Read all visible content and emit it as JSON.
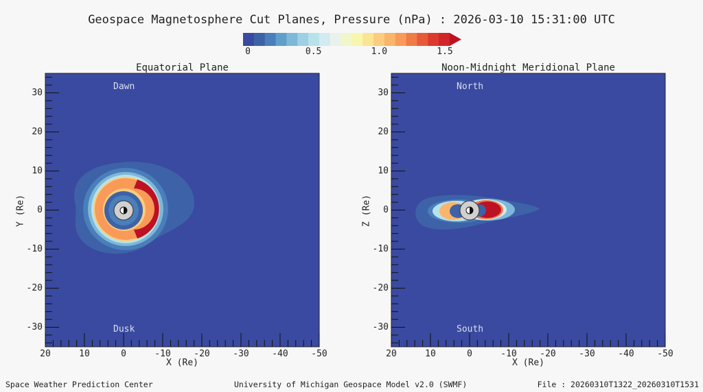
{
  "title": "Geospace Magnetosphere Cut Planes, Pressure (nPa) : 2026-03-10 15:31:00 UTC",
  "colorbar": {
    "labels": [
      "0",
      "0.5",
      "1.0",
      "1.5"
    ],
    "label_values": [
      0,
      0.5,
      1.0,
      1.5
    ],
    "range": [
      0,
      1.5
    ],
    "colors": [
      "#3a4aa0",
      "#3d62a8",
      "#4a7fba",
      "#619fca",
      "#7eb8d8",
      "#9dd0e2",
      "#b8e2ea",
      "#d2ebf1",
      "#e9f2ea",
      "#f1f7c8",
      "#f7f6ae",
      "#fae592",
      "#fbcd7c",
      "#fab56a",
      "#f99a58",
      "#f07b47",
      "#e65a3a",
      "#dc3a2f",
      "#d1252a",
      "#bd1124"
    ]
  },
  "chart_data": [
    {
      "type": "heatmap",
      "title": "Equatorial Plane",
      "xlabel": "X (Re)",
      "ylabel": "Y (Re)",
      "xlim": [
        20,
        -50
      ],
      "ylim": [
        -35,
        35
      ],
      "xticks": [
        20,
        10,
        0,
        -10,
        -20,
        -30,
        -40,
        -50
      ],
      "yticks": [
        30,
        20,
        10,
        0,
        -10,
        -20,
        -30
      ],
      "annotations": {
        "top": "Dawn",
        "bottom": "Dusk"
      }
    },
    {
      "type": "heatmap",
      "title": "Noon-Midnight Meridional Plane",
      "xlabel": "X (Re)",
      "ylabel": "Z (Re)",
      "xlim": [
        20,
        -50
      ],
      "ylim": [
        -35,
        35
      ],
      "xticks": [
        20,
        10,
        0,
        -10,
        -20,
        -30,
        -40,
        -50
      ],
      "yticks": [
        30,
        20,
        10,
        0,
        -10,
        -20,
        -30
      ],
      "annotations": {
        "top": "North",
        "bottom": "South"
      }
    }
  ],
  "footer": {
    "left": "Space Weather Prediction Center",
    "center": "University of Michigan Geospace Model v2.0 (SWMF)",
    "right": "File : 20260310T1322_20260310T1531"
  }
}
